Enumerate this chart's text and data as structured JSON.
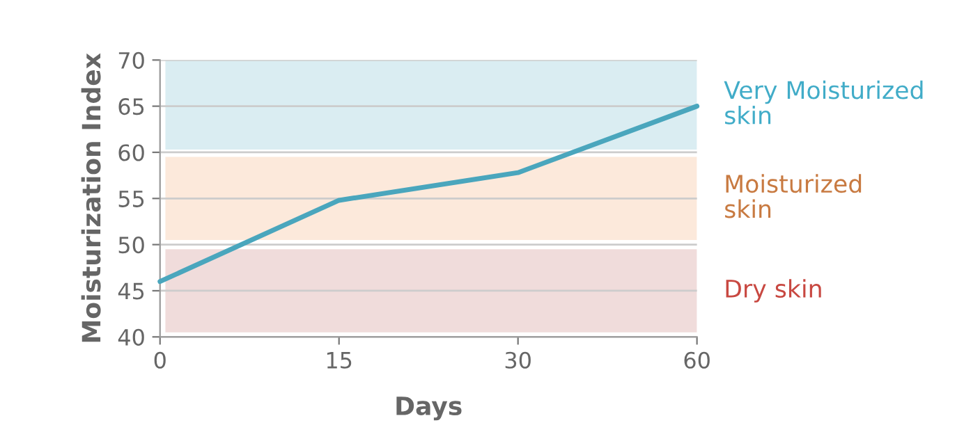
{
  "chart_data": {
    "type": "line",
    "xlabel": "Days",
    "ylabel": "Moisturization Index",
    "categories": [
      "0",
      "15",
      "30",
      "60"
    ],
    "series": [
      {
        "color": "#4aa6bd",
        "values": [
          46,
          54.8,
          57.8,
          65
        ]
      }
    ],
    "ylim": [
      40,
      70
    ],
    "yticks": [
      40,
      45,
      50,
      55,
      60,
      65,
      70
    ],
    "grid": "y",
    "marker": "none",
    "line_style": "solid",
    "bands": [
      {
        "axis": "y",
        "from": 60.3,
        "to": 70,
        "label": "Very Moisturized\nskin",
        "color": "#daedf2"
      },
      {
        "axis": "y",
        "from": 50.5,
        "to": 59.5,
        "label": "Moisturized\nskin",
        "color": "#fce9db"
      },
      {
        "axis": "y",
        "from": 40.5,
        "to": 49.5,
        "label": "Dry skin",
        "color": "#f0dcdb"
      }
    ]
  }
}
